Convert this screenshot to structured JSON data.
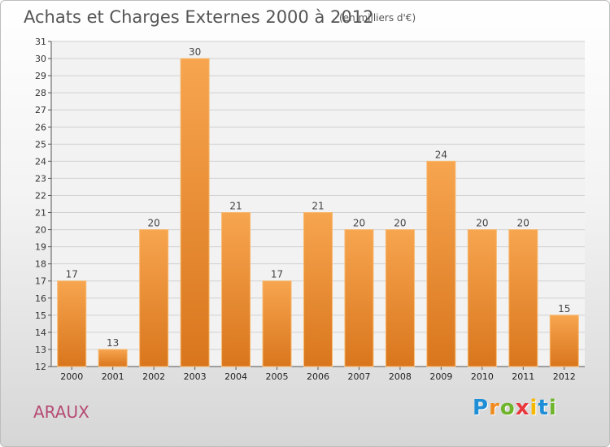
{
  "chart_data": {
    "type": "bar",
    "title": "Achats et Charges Externes 2000 à 2012",
    "subtitle": "(en milliers d'€)",
    "categories": [
      "2000",
      "2001",
      "2002",
      "2003",
      "2004",
      "2005",
      "2006",
      "2007",
      "2008",
      "2009",
      "2010",
      "2011",
      "2012"
    ],
    "values": [
      17,
      13,
      20,
      30,
      21,
      17,
      21,
      20,
      20,
      24,
      20,
      20,
      15
    ],
    "ylim": [
      12,
      31
    ],
    "yticks": [
      12,
      13,
      14,
      15,
      16,
      17,
      18,
      19,
      20,
      21,
      22,
      23,
      24,
      25,
      26,
      27,
      28,
      29,
      30,
      31
    ],
    "grid": true,
    "bar_color": "#f2913a"
  },
  "place_name": "ARAUX",
  "logo": {
    "letters": [
      "P",
      "r",
      "o",
      "x",
      "i",
      "t",
      "i"
    ],
    "colors": [
      "#1e8fd6",
      "#f08a1d",
      "#6fb52c",
      "#e8383d",
      "#f5b800",
      "#1e8fd6",
      "#6fb52c"
    ]
  }
}
